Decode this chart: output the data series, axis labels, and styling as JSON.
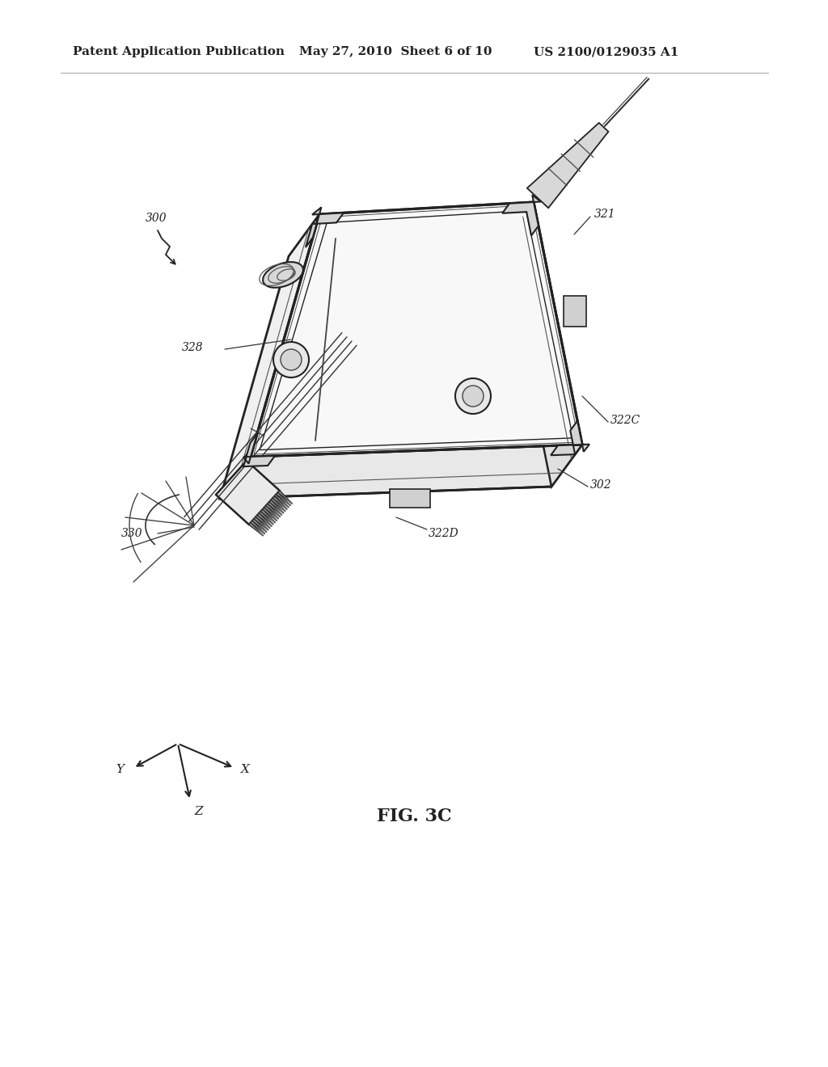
{
  "title_left": "Patent Application Publication",
  "title_mid": "May 27, 2010  Sheet 6 of 10",
  "title_right": "US 2100/0129035 A1",
  "fig_label": "FIG. 3C",
  "bg_color": "#ffffff",
  "line_color": "#222222",
  "text_color": "#222222",
  "header_fontsize": 11,
  "label_fontsize": 10,
  "fig_label_fontsize": 16
}
